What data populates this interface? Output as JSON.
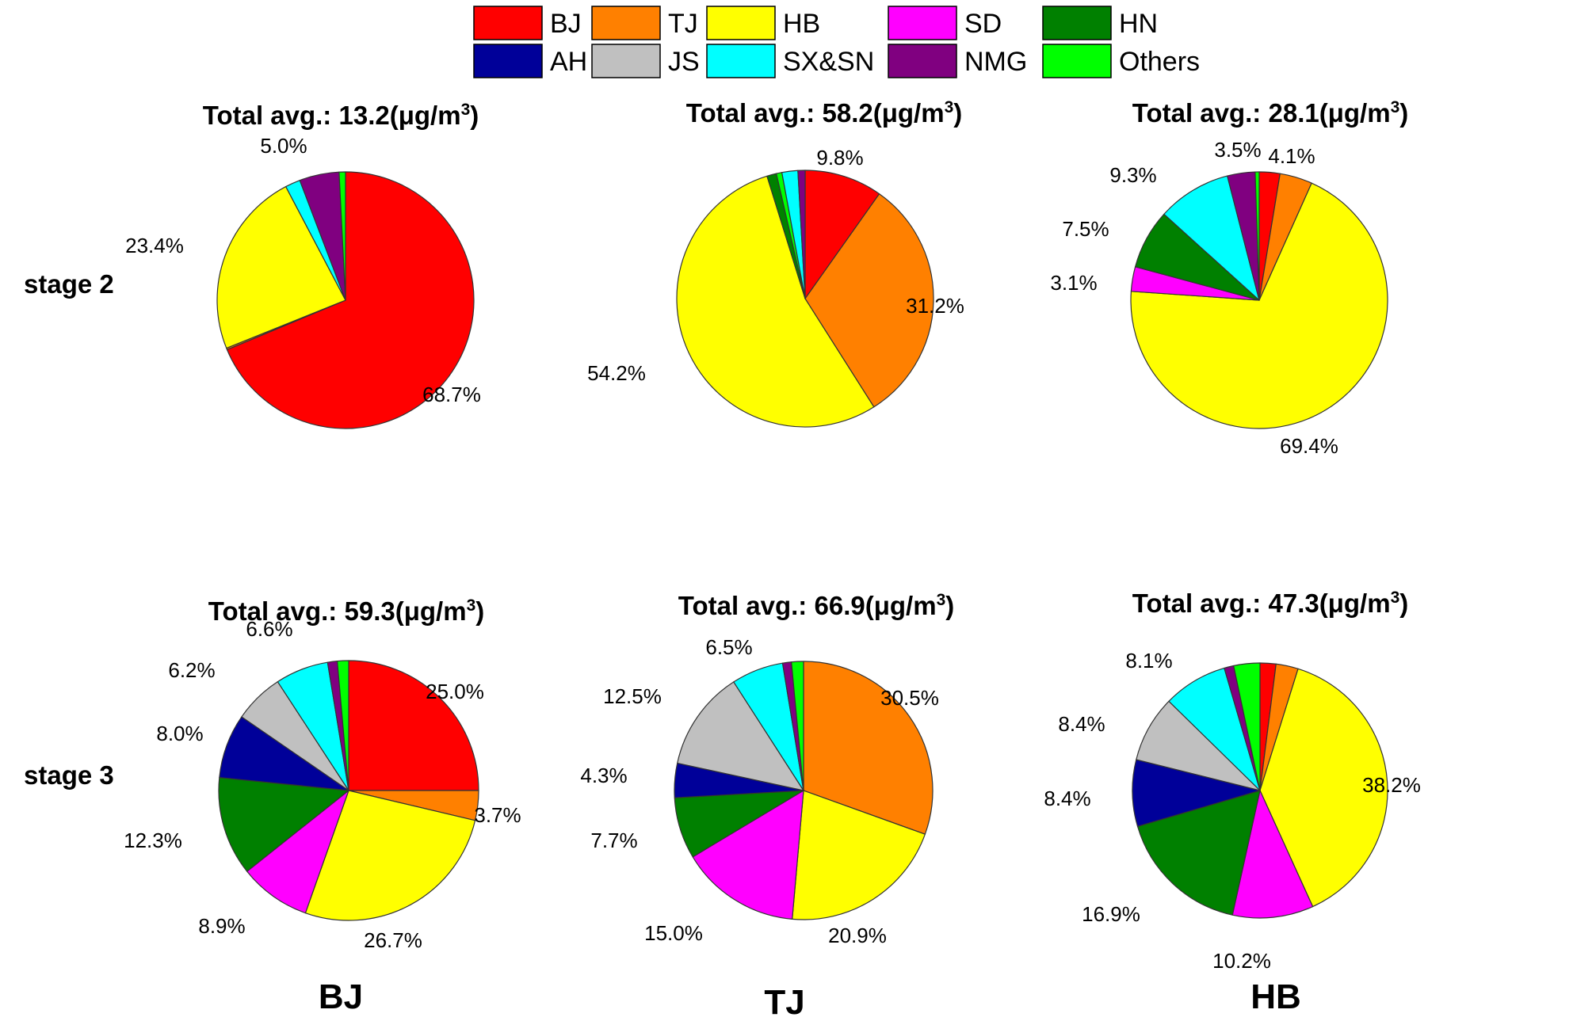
{
  "legend": [
    {
      "label": "BJ",
      "color": "#ff0000"
    },
    {
      "label": "TJ",
      "color": "#ff8000"
    },
    {
      "label": "HB",
      "color": "#ffff00"
    },
    {
      "label": "SD",
      "color": "#ff00ff"
    },
    {
      "label": "HN",
      "color": "#008000"
    },
    {
      "label": "AH",
      "color": "#000099"
    },
    {
      "label": "JS",
      "color": "#c0c0c0"
    },
    {
      "label": "SX&SN",
      "color": "#00ffff"
    },
    {
      "label": "NMG",
      "color": "#800080"
    },
    {
      "label": "Others",
      "color": "#00ff00"
    }
  ],
  "row_labels": [
    "stage 2",
    "stage 3"
  ],
  "column_labels": [
    "BJ",
    "TJ",
    "HB"
  ],
  "chart_data": [
    {
      "type": "pie",
      "row": "stage 2",
      "column": "BJ",
      "title_prefix": "Total avg.:",
      "total": "13.2",
      "unit": "(μg/m",
      "unit_sup": "3",
      "unit_close": ")",
      "slices": [
        {
          "name": "BJ",
          "value": 68.7
        },
        {
          "name": "TJ",
          "value": 0.2
        },
        {
          "name": "HB",
          "value": 23.4
        },
        {
          "name": "SX&SN",
          "value": 1.9
        },
        {
          "name": "NMG",
          "value": 5.0
        },
        {
          "name": "Others",
          "value": 0.8
        }
      ],
      "labels": [
        "68.7%",
        "23.4%",
        "5.0%"
      ]
    },
    {
      "type": "pie",
      "row": "stage 2",
      "column": "TJ",
      "title_prefix": "Total avg.:",
      "total": "58.2",
      "unit": "(μg/m",
      "unit_sup": "3",
      "unit_close": ")",
      "slices": [
        {
          "name": "BJ",
          "value": 9.8
        },
        {
          "name": "TJ",
          "value": 31.2
        },
        {
          "name": "HB",
          "value": 54.2
        },
        {
          "name": "HN",
          "value": 1.2
        },
        {
          "name": "Others",
          "value": 0.7
        },
        {
          "name": "SX&SN",
          "value": 2.0
        },
        {
          "name": "NMG",
          "value": 0.9
        }
      ],
      "labels": [
        "9.8%",
        "31.2%",
        "54.2%"
      ]
    },
    {
      "type": "pie",
      "row": "stage 2",
      "column": "HB",
      "title_prefix": "Total avg.:",
      "total": "28.1",
      "unit": "(μg/m",
      "unit_sup": "3",
      "unit_close": ")",
      "slices": [
        {
          "name": "BJ",
          "value": 2.6
        },
        {
          "name": "TJ",
          "value": 4.1
        },
        {
          "name": "HB",
          "value": 69.4
        },
        {
          "name": "SD",
          "value": 3.1
        },
        {
          "name": "HN",
          "value": 7.5
        },
        {
          "name": "SX&SN",
          "value": 9.3
        },
        {
          "name": "NMG",
          "value": 3.5
        },
        {
          "name": "Others",
          "value": 0.5
        }
      ],
      "labels": [
        "4.1%",
        "69.4%",
        "3.1%",
        "7.5%",
        "9.3%",
        "3.5%"
      ]
    },
    {
      "type": "pie",
      "row": "stage 3",
      "column": "BJ",
      "title_prefix": "Total avg.:",
      "total": "59.3",
      "unit": "(μg/m",
      "unit_sup": "3",
      "unit_close": ")",
      "slices": [
        {
          "name": "BJ",
          "value": 25.0
        },
        {
          "name": "TJ",
          "value": 3.7
        },
        {
          "name": "HB",
          "value": 26.7
        },
        {
          "name": "SD",
          "value": 8.9
        },
        {
          "name": "HN",
          "value": 12.3
        },
        {
          "name": "AH",
          "value": 8.0
        },
        {
          "name": "JS",
          "value": 6.2
        },
        {
          "name": "SX&SN",
          "value": 6.6
        },
        {
          "name": "NMG",
          "value": 1.2
        },
        {
          "name": "Others",
          "value": 1.4
        }
      ],
      "labels": [
        "25.0%",
        "3.7%",
        "26.7%",
        "8.9%",
        "12.3%",
        "8.0%",
        "6.2%",
        "6.6%"
      ]
    },
    {
      "type": "pie",
      "row": "stage 3",
      "column": "TJ",
      "title_prefix": "Total avg.:",
      "total": "66.9",
      "unit": "(μg/m",
      "unit_sup": "3",
      "unit_close": ")",
      "slices": [
        {
          "name": "TJ",
          "value": 30.5
        },
        {
          "name": "HB",
          "value": 20.9
        },
        {
          "name": "SD",
          "value": 15.0
        },
        {
          "name": "HN",
          "value": 7.7
        },
        {
          "name": "AH",
          "value": 4.3
        },
        {
          "name": "JS",
          "value": 12.5
        },
        {
          "name": "SX&SN",
          "value": 6.5
        },
        {
          "name": "NMG",
          "value": 1.1
        },
        {
          "name": "Others",
          "value": 1.5
        }
      ],
      "labels": [
        "30.5%",
        "20.9%",
        "15.0%",
        "7.7%",
        "4.3%",
        "12.5%",
        "6.5%"
      ]
    },
    {
      "type": "pie",
      "row": "stage 3",
      "column": "HB",
      "title_prefix": "Total avg.:",
      "total": "47.3",
      "unit": "(μg/m",
      "unit_sup": "3",
      "unit_close": ")",
      "slices": [
        {
          "name": "BJ",
          "value": 2.0
        },
        {
          "name": "TJ",
          "value": 2.8
        },
        {
          "name": "HB",
          "value": 38.2
        },
        {
          "name": "SD",
          "value": 10.2
        },
        {
          "name": "HN",
          "value": 16.9
        },
        {
          "name": "AH",
          "value": 8.4
        },
        {
          "name": "JS",
          "value": 8.4
        },
        {
          "name": "SX&SN",
          "value": 8.1
        },
        {
          "name": "NMG",
          "value": 1.2
        },
        {
          "name": "Others",
          "value": 3.3
        }
      ],
      "labels": [
        "38.2%",
        "10.2%",
        "16.9%",
        "8.4%",
        "8.4%",
        "8.1%"
      ]
    }
  ]
}
